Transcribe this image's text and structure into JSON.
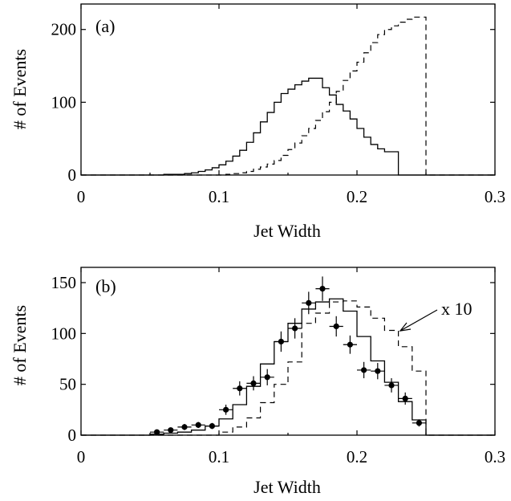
{
  "chart_data": [
    {
      "type": "line",
      "panel_label": "(a)",
      "xlabel": "Jet Width",
      "ylabel": "# of Events",
      "xlim": [
        0,
        0.3
      ],
      "ylim": [
        0,
        235
      ],
      "xticks": [
        0,
        0.1,
        0.2,
        0.3
      ],
      "xtick_labels": [
        "0",
        "0.1",
        "0.2",
        "0.3"
      ],
      "yticks": [
        0,
        100,
        200
      ],
      "ytick_labels": [
        "0",
        "100",
        "200"
      ],
      "bin_edges": [
        0.06,
        0.065,
        0.07,
        0.075,
        0.08,
        0.085,
        0.09,
        0.095,
        0.1,
        0.105,
        0.11,
        0.115,
        0.12,
        0.125,
        0.13,
        0.135,
        0.14,
        0.145,
        0.15,
        0.155,
        0.16,
        0.165,
        0.17,
        0.175,
        0.18,
        0.185,
        0.19,
        0.195,
        0.2,
        0.205,
        0.21,
        0.215,
        0.22,
        0.225,
        0.23,
        0.235,
        0.24,
        0.245,
        0.25
      ],
      "series": [
        {
          "style": "solid",
          "values": [
            1,
            1,
            1,
            2,
            3,
            5,
            7,
            10,
            14,
            19,
            26,
            34,
            45,
            58,
            73,
            86,
            100,
            112,
            118,
            124,
            129,
            133,
            133,
            120,
            110,
            97,
            88,
            77,
            64,
            52,
            42,
            36,
            32,
            32,
            0,
            0,
            0,
            0
          ]
        },
        {
          "style": "dashed",
          "values": [
            0,
            0,
            0,
            0,
            0,
            0,
            0,
            0,
            0,
            1,
            2,
            3,
            5,
            8,
            11,
            15,
            20,
            27,
            35,
            44,
            54,
            64,
            75,
            87,
            100,
            115,
            130,
            143,
            155,
            168,
            182,
            193,
            200,
            205,
            210,
            214,
            217,
            217
          ]
        }
      ]
    },
    {
      "type": "line",
      "panel_label": "(b)",
      "xlabel": "Jet Width",
      "ylabel": "# of Events",
      "annotation": "x 10",
      "xlim": [
        0,
        0.3
      ],
      "ylim": [
        0,
        165
      ],
      "xticks": [
        0,
        0.1,
        0.2,
        0.3
      ],
      "xtick_labels": [
        "0",
        "0.1",
        "0.2",
        "0.3"
      ],
      "yticks": [
        0,
        50,
        100,
        150
      ],
      "ytick_labels": [
        "0",
        "50",
        "100",
        "150"
      ],
      "bin_edges": [
        0.05,
        0.06,
        0.07,
        0.08,
        0.09,
        0.1,
        0.11,
        0.12,
        0.13,
        0.14,
        0.15,
        0.16,
        0.17,
        0.18,
        0.19,
        0.2,
        0.21,
        0.22,
        0.23,
        0.24,
        0.25
      ],
      "series": [
        {
          "style": "solid",
          "values": [
            1,
            2,
            3,
            5,
            9,
            16,
            30,
            48,
            70,
            92,
            110,
            124,
            131,
            134,
            122,
            97,
            73,
            52,
            33,
            15
          ]
        },
        {
          "style": "dashed",
          "values": [
            0,
            0,
            0,
            0,
            0,
            3,
            8,
            17,
            32,
            50,
            72,
            110,
            120,
            131,
            132,
            126,
            115,
            103,
            87,
            63
          ]
        },
        {
          "style": "points",
          "x": [
            0.055,
            0.065,
            0.075,
            0.085,
            0.095,
            0.105,
            0.115,
            0.125,
            0.135,
            0.145,
            0.155,
            0.165,
            0.175,
            0.185,
            0.195,
            0.205,
            0.215,
            0.225,
            0.235,
            0.245
          ],
          "y": [
            3,
            5,
            8,
            10,
            9,
            25,
            46,
            51,
            57,
            92,
            105,
            130,
            144,
            107,
            89,
            64,
            63,
            49,
            36,
            12
          ],
          "yerr": [
            2,
            2,
            3,
            3,
            3,
            5,
            7,
            7,
            8,
            10,
            10,
            11,
            12,
            10,
            9,
            8,
            8,
            7,
            6,
            3.5
          ]
        }
      ]
    }
  ]
}
